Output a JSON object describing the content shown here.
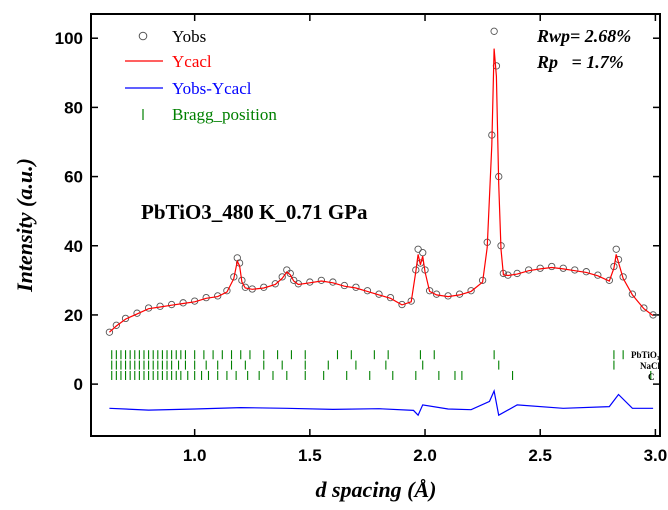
{
  "chart_data": {
    "type": "line",
    "xlabel": "d spacing (Å)",
    "ylabel": "Intensity (a.u.)",
    "xlim": [
      0.55,
      3.02
    ],
    "ylim": [
      -15,
      107
    ],
    "x_ticks": [
      1.0,
      1.5,
      2.0,
      2.5,
      3.0
    ],
    "x_tick_labels": [
      "1.0",
      "1.5",
      "2.0",
      "2.5",
      "3.0"
    ],
    "y_ticks": [
      0,
      20,
      40,
      60,
      80,
      100
    ],
    "y_tick_labels": [
      "0",
      "20",
      "40",
      "60",
      "80",
      "100"
    ],
    "annotation": "PbTiO3_480 K_0.71 GPa",
    "rwp_label": "Rwp= 2.68%",
    "rp_label": "Rp   = 1.7%",
    "legend": {
      "position": "top-left",
      "entries": [
        {
          "label": "Yobs",
          "color": "#000000",
          "marker": "open-circle"
        },
        {
          "label": "Ycacl",
          "color": "#ff0000",
          "marker": "line"
        },
        {
          "label": "Yobs-Ycacl",
          "color": "#0000ff",
          "marker": "line"
        },
        {
          "label": "Bragg_position",
          "color": "#008000",
          "marker": "tick"
        }
      ]
    },
    "series": [
      {
        "name": "Yobs",
        "color": "#000000",
        "style": "markers",
        "x": [
          0.63,
          0.66,
          0.7,
          0.75,
          0.8,
          0.85,
          0.9,
          0.95,
          1.0,
          1.05,
          1.1,
          1.14,
          1.17,
          1.185,
          1.195,
          1.205,
          1.22,
          1.25,
          1.3,
          1.35,
          1.38,
          1.4,
          1.415,
          1.43,
          1.45,
          1.5,
          1.55,
          1.6,
          1.65,
          1.7,
          1.75,
          1.8,
          1.85,
          1.9,
          1.94,
          1.96,
          1.97,
          1.98,
          1.99,
          2.0,
          2.02,
          2.05,
          2.1,
          2.15,
          2.2,
          2.25,
          2.27,
          2.29,
          2.3,
          2.31,
          2.32,
          2.33,
          2.34,
          2.36,
          2.4,
          2.45,
          2.5,
          2.55,
          2.6,
          2.65,
          2.7,
          2.75,
          2.8,
          2.82,
          2.83,
          2.84,
          2.86,
          2.9,
          2.95,
          2.99
        ],
        "y": [
          15,
          17,
          19,
          20.5,
          22,
          22.5,
          23,
          23.5,
          24,
          25,
          25.5,
          27,
          31,
          36.5,
          35,
          30,
          28,
          27.5,
          28,
          29,
          31,
          33,
          32,
          30,
          29,
          29.5,
          30,
          29.5,
          28.5,
          28,
          27,
          26,
          25,
          23,
          24,
          33,
          39,
          35,
          38,
          33,
          27,
          26,
          25.5,
          26,
          27,
          30,
          41,
          72,
          102,
          92,
          60,
          40,
          32,
          31.5,
          32,
          33,
          33.5,
          34,
          33.5,
          33,
          32.5,
          31.5,
          30,
          34,
          39,
          36,
          31,
          26,
          22,
          20
        ]
      },
      {
        "name": "Ycacl",
        "color": "#ff0000",
        "style": "line",
        "x": [
          0.63,
          0.66,
          0.7,
          0.75,
          0.8,
          0.85,
          0.9,
          0.95,
          1.0,
          1.05,
          1.1,
          1.14,
          1.17,
          1.185,
          1.195,
          1.205,
          1.22,
          1.25,
          1.3,
          1.35,
          1.38,
          1.4,
          1.415,
          1.43,
          1.45,
          1.5,
          1.55,
          1.6,
          1.65,
          1.7,
          1.75,
          1.8,
          1.85,
          1.9,
          1.94,
          1.96,
          1.97,
          1.98,
          1.99,
          2.0,
          2.02,
          2.05,
          2.1,
          2.15,
          2.2,
          2.25,
          2.27,
          2.29,
          2.3,
          2.31,
          2.32,
          2.33,
          2.34,
          2.36,
          2.4,
          2.45,
          2.5,
          2.55,
          2.6,
          2.65,
          2.7,
          2.75,
          2.8,
          2.82,
          2.83,
          2.84,
          2.86,
          2.9,
          2.95,
          2.99
        ],
        "y": [
          15,
          16.8,
          18.8,
          20.3,
          21.8,
          22.3,
          22.8,
          23.3,
          23.8,
          24.8,
          25.3,
          26.6,
          30.5,
          35.5,
          34.2,
          29.5,
          27.8,
          27.4,
          27.8,
          28.8,
          30.6,
          32.4,
          31.6,
          29.8,
          28.8,
          29.3,
          29.8,
          29.3,
          28.3,
          27.8,
          26.8,
          25.8,
          24.8,
          22.9,
          23.8,
          32.5,
          37.5,
          34.5,
          37,
          32.5,
          26.8,
          25.8,
          25.3,
          25.8,
          26.8,
          29.5,
          39.5,
          69,
          97,
          89,
          58,
          39,
          31.6,
          31.4,
          31.8,
          32.8,
          33.3,
          33.7,
          33.3,
          32.8,
          32.3,
          31.3,
          29.8,
          33.5,
          37.5,
          35.2,
          30.6,
          25.8,
          21.8,
          19.8
        ]
      },
      {
        "name": "Yobs-Ycacl",
        "color": "#0000ff",
        "style": "line",
        "x": [
          0.63,
          0.8,
          1.0,
          1.2,
          1.4,
          1.6,
          1.8,
          1.95,
          1.97,
          1.99,
          2.1,
          2.2,
          2.28,
          2.3,
          2.32,
          2.4,
          2.6,
          2.8,
          2.84,
          2.9,
          2.99
        ],
        "y": [
          -7,
          -7.5,
          -7.2,
          -6.8,
          -7.0,
          -7.3,
          -7.1,
          -7.6,
          -9,
          -6,
          -7.2,
          -7.4,
          -5,
          -2,
          -9,
          -6,
          -7,
          -6.5,
          -3,
          -7,
          -7
        ]
      }
    ],
    "bragg_positions": [
      {
        "phase": "PbTiO₃",
        "color": "#008000",
        "row_y": 8.5,
        "x": [
          0.64,
          0.66,
          0.68,
          0.7,
          0.72,
          0.74,
          0.76,
          0.78,
          0.8,
          0.82,
          0.84,
          0.86,
          0.88,
          0.9,
          0.92,
          0.94,
          0.96,
          1.0,
          1.04,
          1.08,
          1.12,
          1.16,
          1.2,
          1.24,
          1.3,
          1.36,
          1.42,
          1.48,
          1.62,
          1.68,
          1.78,
          1.84,
          1.98,
          2.04,
          2.3,
          2.82,
          2.86
        ]
      },
      {
        "phase": "NaCl",
        "color": "#008000",
        "row_y": 5.5,
        "x": [
          0.64,
          0.66,
          0.68,
          0.7,
          0.72,
          0.74,
          0.76,
          0.78,
          0.8,
          0.82,
          0.84,
          0.86,
          0.88,
          0.9,
          0.93,
          0.96,
          1.0,
          1.05,
          1.1,
          1.16,
          1.22,
          1.3,
          1.38,
          1.48,
          1.58,
          1.7,
          1.83,
          1.99,
          2.32,
          2.82
        ]
      },
      {
        "phase": "C",
        "color": "#008000",
        "row_y": 2.5,
        "x": [
          0.64,
          0.66,
          0.68,
          0.7,
          0.72,
          0.74,
          0.76,
          0.78,
          0.8,
          0.82,
          0.84,
          0.86,
          0.88,
          0.9,
          0.92,
          0.94,
          0.97,
          1.0,
          1.03,
          1.06,
          1.1,
          1.14,
          1.18,
          1.23,
          1.28,
          1.34,
          1.4,
          1.48,
          1.56,
          1.66,
          1.76,
          1.86,
          1.96,
          2.06,
          2.13,
          2.16,
          2.38,
          2.98
        ]
      }
    ]
  }
}
